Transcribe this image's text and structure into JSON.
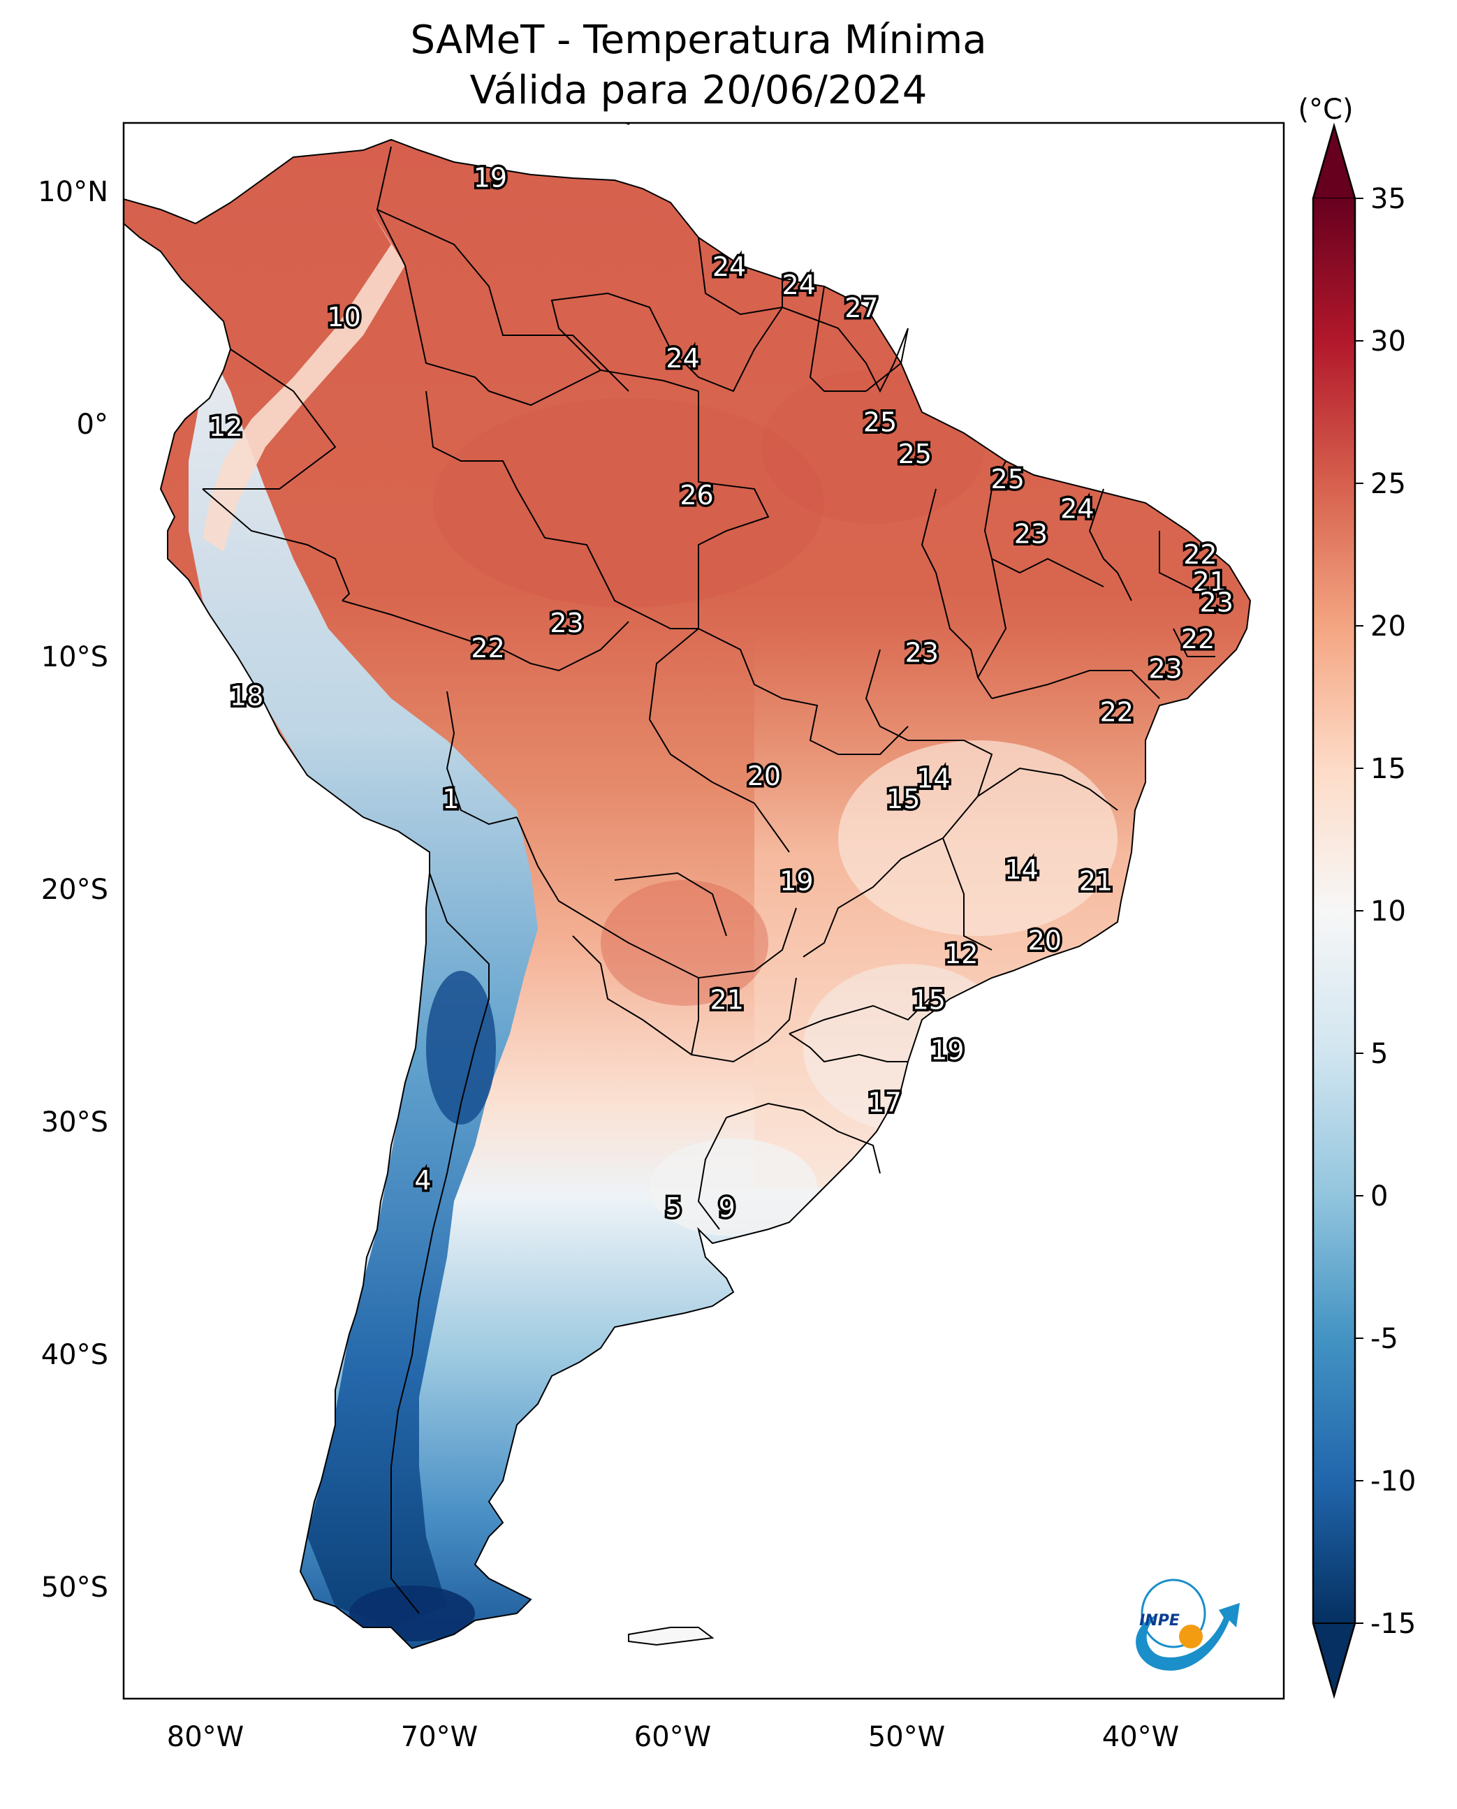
{
  "title": "SAMeT - Temperatura Mínima",
  "subtitle": "Válida para 20/06/2024",
  "logo_text": "INPE",
  "colorbar": {
    "unit": "(°C)",
    "ticks": [
      "35",
      "30",
      "25",
      "20",
      "15",
      "10",
      "5",
      "0",
      "-5",
      "-10",
      "-15"
    ],
    "tick_values": [
      35,
      30,
      25,
      20,
      15,
      10,
      5,
      0,
      -5,
      -10,
      -15
    ],
    "min": -15,
    "max": 35,
    "colors": [
      "#053061",
      "#2166ac",
      "#4393c3",
      "#92c5de",
      "#d1e5f0",
      "#f7f7f7",
      "#fddbc7",
      "#f4a582",
      "#d6604d",
      "#b2182b",
      "#67001f"
    ]
  },
  "axes": {
    "lon_labels": [
      "80°W",
      "70°W",
      "60°W",
      "50°W",
      "40°W"
    ],
    "lat_labels": [
      "10°N",
      "0°",
      "10°S",
      "20°S",
      "30°S",
      "40°S",
      "50°S"
    ],
    "lon_range": [
      -83,
      -33
    ],
    "lat_range": [
      -56,
      13
    ]
  },
  "chart_data": {
    "type": "map",
    "variable": "Temperatura Mínima",
    "unit": "°C",
    "labels": [
      {
        "lon": -67.2,
        "lat": 10.6,
        "value": "19"
      },
      {
        "lon": -56.9,
        "lat": 6.7,
        "value": "24"
      },
      {
        "lon": -53.9,
        "lat": 5.9,
        "value": "24"
      },
      {
        "lon": -51.2,
        "lat": 4.9,
        "value": "27"
      },
      {
        "lon": -73.5,
        "lat": 4.5,
        "value": "10"
      },
      {
        "lon": -58.9,
        "lat": 2.7,
        "value": "24"
      },
      {
        "lon": -78.6,
        "lat": -0.3,
        "value": "12"
      },
      {
        "lon": -50.4,
        "lat": -0.1,
        "value": "25"
      },
      {
        "lon": -48.9,
        "lat": -1.5,
        "value": "25"
      },
      {
        "lon": -44.9,
        "lat": -2.6,
        "value": "25"
      },
      {
        "lon": -58.3,
        "lat": -3.3,
        "value": "26"
      },
      {
        "lon": -41.9,
        "lat": -3.9,
        "value": "24"
      },
      {
        "lon": -43.9,
        "lat": -5.0,
        "value": "23"
      },
      {
        "lon": -36.6,
        "lat": -5.9,
        "value": "22"
      },
      {
        "lon": -36.2,
        "lat": -7.1,
        "value": "21"
      },
      {
        "lon": -35.9,
        "lat": -8.0,
        "value": "23"
      },
      {
        "lon": -63.9,
        "lat": -8.9,
        "value": "23"
      },
      {
        "lon": -36.7,
        "lat": -9.6,
        "value": "22"
      },
      {
        "lon": -48.6,
        "lat": -10.2,
        "value": "23"
      },
      {
        "lon": -67.3,
        "lat": -10.0,
        "value": "22"
      },
      {
        "lon": -38.1,
        "lat": -10.9,
        "value": "23"
      },
      {
        "lon": -77.7,
        "lat": -12.1,
        "value": "18"
      },
      {
        "lon": -40.2,
        "lat": -12.8,
        "value": "22"
      },
      {
        "lon": -55.4,
        "lat": -15.6,
        "value": "20"
      },
      {
        "lon": -48.1,
        "lat": -15.7,
        "value": "14"
      },
      {
        "lon": -49.4,
        "lat": -16.6,
        "value": "15"
      },
      {
        "lon": -68.9,
        "lat": -16.6,
        "value": "1"
      },
      {
        "lon": -44.3,
        "lat": -19.7,
        "value": "14"
      },
      {
        "lon": -41.1,
        "lat": -20.2,
        "value": "21"
      },
      {
        "lon": -54.0,
        "lat": -20.2,
        "value": "19"
      },
      {
        "lon": -43.3,
        "lat": -22.8,
        "value": "20"
      },
      {
        "lon": -46.9,
        "lat": -23.4,
        "value": "12"
      },
      {
        "lon": -57.0,
        "lat": -25.4,
        "value": "21"
      },
      {
        "lon": -48.3,
        "lat": -25.4,
        "value": "15"
      },
      {
        "lon": -47.5,
        "lat": -27.6,
        "value": "19"
      },
      {
        "lon": -50.2,
        "lat": -29.9,
        "value": "17"
      },
      {
        "lon": -70.1,
        "lat": -33.3,
        "value": "4"
      },
      {
        "lon": -59.3,
        "lat": -34.5,
        "value": "5"
      },
      {
        "lon": -57.0,
        "lat": -34.5,
        "value": "9"
      }
    ]
  }
}
